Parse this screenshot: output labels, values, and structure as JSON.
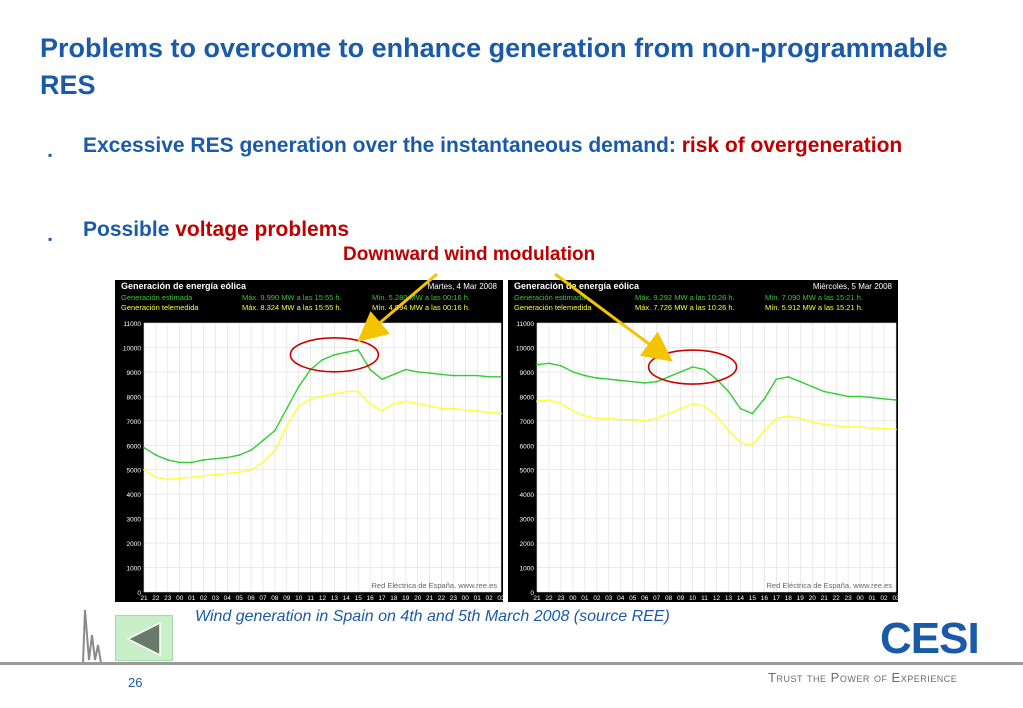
{
  "slide": {
    "title": "Problems to overcome to enhance generation from non-programmable RES",
    "bullets": [
      {
        "text": "Excessive RES generation over the instantaneous demand: ",
        "highlight": "risk of overgeneration"
      },
      {
        "text": "Possible ",
        "highlight": "voltage problems"
      }
    ],
    "annotation": "Downward wind modulation",
    "caption": "Wind generation in Spain on 4th and 5th March 2008 (source REE)",
    "page_number": "26",
    "tagline": "Trust the Power of Experience",
    "logo": "CESI",
    "bullet_glyph": "▪"
  },
  "colors": {
    "title": "#1a5aa8",
    "highlight": "#c00000",
    "estimated": "#33cc33",
    "measured": "#ffff33",
    "chart_bg": "#000000"
  },
  "chart_data": [
    {
      "type": "line",
      "title": "Generación de energía eólica",
      "date": "Martes, 4 Mar 2008",
      "legend": [
        {
          "name": "Generación estimada",
          "max_label": "Máx.",
          "max": "9.990",
          "max_unit": "MW a las 15:55 h.",
          "min_label": "Mín.",
          "min": "5.280",
          "min_unit": "MW a las 00:16 h."
        },
        {
          "name": "Generación telemedida",
          "max_label": "Máx.",
          "max": "8.324",
          "max_unit": "MW a las 15:55 h.",
          "min_label": "Mín.",
          "min": "4.594",
          "min_unit": "MW a las 00:16 h."
        }
      ],
      "source": "Red Eléctrica de España.   www.ree.es",
      "ylim": [
        0,
        11000
      ],
      "yticks": [
        "0",
        "1000",
        "2000",
        "3000",
        "4000",
        "5000",
        "6000",
        "7000",
        "8000",
        "9000",
        "10000",
        "11000"
      ],
      "xticks": [
        "21",
        "22",
        "23",
        "00",
        "01",
        "02",
        "03",
        "04",
        "05",
        "06",
        "07",
        "08",
        "09",
        "10",
        "11",
        "12",
        "13",
        "14",
        "15",
        "16",
        "17",
        "18",
        "19",
        "20",
        "21",
        "22",
        "23",
        "00",
        "01",
        "02",
        "03"
      ],
      "series": [
        {
          "name": "Generación estimada",
          "values": [
            5900,
            5600,
            5400,
            5300,
            5300,
            5400,
            5450,
            5500,
            5600,
            5800,
            6200,
            6600,
            7500,
            8400,
            9100,
            9500,
            9700,
            9800,
            9900,
            9100,
            8700,
            8900,
            9100,
            9000,
            8950,
            8900,
            8850,
            8850,
            8850,
            8800,
            8800
          ]
        },
        {
          "name": "Generación telemedida",
          "values": [
            5000,
            4700,
            4600,
            4650,
            4700,
            4750,
            4800,
            4850,
            4900,
            5000,
            5300,
            5800,
            6800,
            7600,
            7900,
            8000,
            8100,
            8200,
            8200,
            7700,
            7400,
            7700,
            7800,
            7700,
            7600,
            7500,
            7500,
            7450,
            7400,
            7350,
            7300
          ]
        }
      ]
    },
    {
      "type": "line",
      "title": "Generación de energía eólica",
      "date": "Miércoles, 5 Mar 2008",
      "legend": [
        {
          "name": "Generación estimada",
          "max_label": "Máx.",
          "max": "9.292",
          "max_unit": "MW a las 10:26 h.",
          "min_label": "Mín.",
          "min": "7.090",
          "min_unit": "MW a las 15:21 h."
        },
        {
          "name": "Generación telemedida",
          "max_label": "Máx.",
          "max": "7.726",
          "max_unit": "MW a las 10:26 h.",
          "min_label": "Mín.",
          "min": "5.912",
          "min_unit": "MW a las 15:21 h."
        }
      ],
      "source": "Red Eléctrica de España.   www.ree.es",
      "ylim": [
        0,
        11000
      ],
      "yticks": [
        "0",
        "1000",
        "2000",
        "3000",
        "4000",
        "5000",
        "6000",
        "7000",
        "8000",
        "9000",
        "10000",
        "11000"
      ],
      "xticks": [
        "21",
        "22",
        "23",
        "00",
        "01",
        "02",
        "03",
        "04",
        "05",
        "06",
        "07",
        "08",
        "09",
        "10",
        "11",
        "12",
        "13",
        "14",
        "15",
        "16",
        "17",
        "18",
        "19",
        "20",
        "21",
        "22",
        "23",
        "00",
        "01",
        "02",
        "03"
      ],
      "series": [
        {
          "name": "Generación estimada",
          "values": [
            9300,
            9350,
            9250,
            9000,
            8850,
            8750,
            8700,
            8650,
            8600,
            8550,
            8600,
            8800,
            9000,
            9200,
            9100,
            8700,
            8200,
            7500,
            7300,
            7900,
            8700,
            8800,
            8600,
            8400,
            8200,
            8100,
            8000,
            8000,
            7950,
            7900,
            7850
          ]
        },
        {
          "name": "Generación telemedida",
          "values": [
            7800,
            7850,
            7700,
            7400,
            7200,
            7100,
            7100,
            7050,
            7050,
            7000,
            7100,
            7300,
            7500,
            7700,
            7600,
            7200,
            6600,
            6100,
            6000,
            6600,
            7100,
            7200,
            7100,
            6950,
            6850,
            6800,
            6750,
            6750,
            6700,
            6700,
            6650
          ]
        }
      ]
    }
  ]
}
